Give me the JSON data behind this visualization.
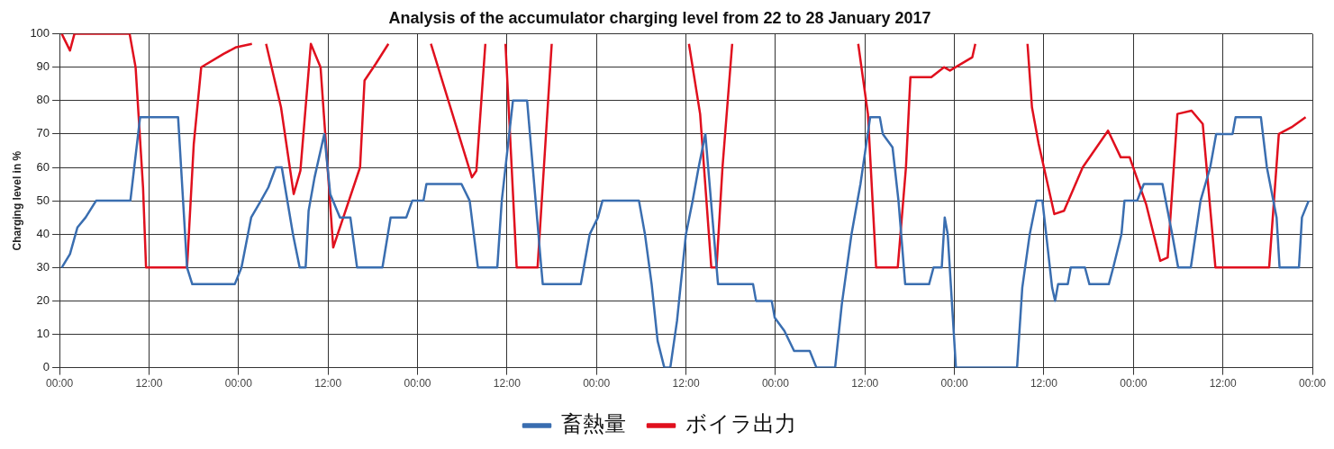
{
  "chart_data": {
    "type": "line",
    "title": "Analysis of the accumulator charging level from 22 to 28 January 2017",
    "ylabel": "Charging level in %",
    "xlim": [
      "2017-01-22T00:00",
      "2017-01-29T00:00"
    ],
    "xticks": [
      {
        "value": "2017-01-22T00:00",
        "label": "00:00"
      },
      {
        "value": "2017-01-22T12:00",
        "label": "12:00"
      },
      {
        "value": "2017-01-23T00:00",
        "label": "00:00"
      },
      {
        "value": "2017-01-23T12:00",
        "label": "12:00"
      },
      {
        "value": "2017-01-24T00:00",
        "label": "00:00"
      },
      {
        "value": "2017-01-24T12:00",
        "label": "12:00"
      },
      {
        "value": "2017-01-25T00:00",
        "label": "00:00"
      },
      {
        "value": "2017-01-25T12:00",
        "label": "12:00"
      },
      {
        "value": "2017-01-26T00:00",
        "label": "00:00"
      },
      {
        "value": "2017-01-26T12:00",
        "label": "12:00"
      },
      {
        "value": "2017-01-27T00:00",
        "label": "00:00"
      },
      {
        "value": "2017-01-27T12:00",
        "label": "12:00"
      },
      {
        "value": "2017-01-28T00:00",
        "label": "00:00"
      },
      {
        "value": "2017-01-28T12:00",
        "label": "12:00"
      },
      {
        "value": "2017-01-29T00:00",
        "label": "00:00"
      }
    ],
    "ylim": [
      0,
      100
    ],
    "yticks": [
      0,
      10,
      20,
      30,
      40,
      50,
      60,
      70,
      80,
      90,
      100
    ],
    "grid": true,
    "legend": "bottom",
    "marker": "none",
    "line_style": "solid",
    "series": [
      {
        "name": "畜熱量",
        "color": "#3a6eb0",
        "x": [
          "2017-01-22T00:18",
          "2017-01-22T01:24",
          "2017-01-22T02:24",
          "2017-01-22T03:30",
          "2017-01-22T04:54",
          "2017-01-22T09:30",
          "2017-01-22T10:48",
          "2017-01-22T15:54",
          "2017-01-22T17:06",
          "2017-01-22T17:48",
          "2017-01-22T23:30",
          "2017-01-23T00:24",
          "2017-01-23T01:42",
          "2017-01-23T03:00",
          "2017-01-23T04:00",
          "2017-01-23T05:00",
          "2017-01-23T05:48",
          "2017-01-23T07:18",
          "2017-01-23T08:12",
          "2017-01-23T09:00",
          "2017-01-23T09:24",
          "2017-01-23T10:12",
          "2017-01-23T11:30",
          "2017-01-23T12:18",
          "2017-01-23T13:36",
          "2017-01-23T15:00",
          "2017-01-23T15:54",
          "2017-01-23T19:18",
          "2017-01-23T20:24",
          "2017-01-23T22:30",
          "2017-01-23T23:18",
          "2017-01-24T00:48",
          "2017-01-24T01:12",
          "2017-01-24T05:54",
          "2017-01-24T07:00",
          "2017-01-24T08:06",
          "2017-01-24T10:42",
          "2017-01-24T11:18",
          "2017-01-24T12:48",
          "2017-01-24T14:42",
          "2017-01-24T16:36",
          "2017-01-24T16:48",
          "2017-01-24T21:54",
          "2017-01-24T22:18",
          "2017-01-24T23:06",
          "2017-01-25T00:12",
          "2017-01-25T00:48",
          "2017-01-25T05:42",
          "2017-01-25T06:30",
          "2017-01-25T07:24",
          "2017-01-25T08:12",
          "2017-01-25T09:06",
          "2017-01-25T09:54",
          "2017-01-25T10:48",
          "2017-01-25T12:00",
          "2017-01-25T12:54",
          "2017-01-25T13:42",
          "2017-01-25T14:36",
          "2017-01-25T16:18",
          "2017-01-25T21:00",
          "2017-01-25T21:24",
          "2017-01-25T23:30",
          "2017-01-25T23:54",
          "2017-01-26T01:12",
          "2017-01-26T02:30",
          "2017-01-26T04:36",
          "2017-01-26T05:30",
          "2017-01-26T08:00",
          "2017-01-26T08:54",
          "2017-01-26T10:12",
          "2017-01-26T11:24",
          "2017-01-26T12:42",
          "2017-01-26T14:00",
          "2017-01-26T14:24",
          "2017-01-26T15:42",
          "2017-01-26T16:30",
          "2017-01-26T17:24",
          "2017-01-26T20:36",
          "2017-01-26T21:12",
          "2017-01-26T22:18",
          "2017-01-26T22:42",
          "2017-01-26T23:06",
          "2017-01-27T00:12",
          "2017-01-27T08:24",
          "2017-01-27T09:06",
          "2017-01-27T10:06",
          "2017-01-27T11:00",
          "2017-01-27T11:48",
          "2017-01-27T13:06",
          "2017-01-27T13:30",
          "2017-01-27T13:54",
          "2017-01-27T15:12",
          "2017-01-27T15:36",
          "2017-01-27T17:30",
          "2017-01-27T18:06",
          "2017-01-27T20:42",
          "2017-01-27T21:18",
          "2017-01-27T22:24",
          "2017-01-27T22:48",
          "2017-01-28T00:30",
          "2017-01-28T01:24",
          "2017-01-28T03:54",
          "2017-01-28T05:12",
          "2017-01-28T06:00",
          "2017-01-28T07:42",
          "2017-01-28T09:00",
          "2017-01-28T10:18",
          "2017-01-28T11:06",
          "2017-01-28T13:18",
          "2017-01-28T13:42",
          "2017-01-28T17:06",
          "2017-01-28T17:54",
          "2017-01-28T19:12",
          "2017-01-28T19:36",
          "2017-01-28T22:12",
          "2017-01-28T22:36",
          "2017-01-28T23:30"
        ],
        "values": [
          30,
          34,
          42,
          45,
          50,
          50,
          75,
          75,
          30,
          25,
          25,
          30,
          45,
          50,
          54,
          60,
          60,
          40,
          30,
          30,
          47,
          57,
          70,
          52,
          45,
          45,
          30,
          30,
          45,
          45,
          50,
          50,
          55,
          55,
          50,
          30,
          30,
          50,
          80,
          80,
          30,
          25,
          25,
          30,
          40,
          45,
          50,
          50,
          40,
          25,
          8,
          0,
          0,
          14,
          40,
          50,
          60,
          70,
          25,
          25,
          20,
          20,
          15,
          11,
          5,
          5,
          0,
          0,
          19,
          40,
          55,
          75,
          75,
          70,
          66,
          50,
          25,
          25,
          30,
          30,
          45,
          40,
          0,
          0,
          24,
          40,
          50,
          50,
          24,
          20,
          25,
          25,
          30,
          30,
          25,
          25,
          30,
          40,
          50,
          50,
          55,
          55,
          40,
          30,
          30,
          50,
          60,
          70,
          70,
          75,
          75,
          60,
          45,
          30,
          30,
          45,
          50
        ]
      },
      {
        "name": "ボイラ出力",
        "color": "#e0101e",
        "x": [
          "2017-01-22T00:18",
          "2017-01-22T01:24",
          "2017-01-22T02:00",
          "2017-01-22T09:24",
          "2017-01-22T10:12",
          "2017-01-22T11:12",
          "2017-01-22T11:36",
          "2017-01-22T17:06",
          "2017-01-22T18:00",
          "2017-01-22T19:00",
          "2017-01-22T22:00",
          "2017-01-22T23:42",
          "2017-01-23T01:48",
          "2017-01-23T02:42",
          "2017-01-23T03:42",
          "2017-01-23T05:42",
          "2017-01-23T07:24",
          "2017-01-23T08:18",
          "2017-01-23T09:42",
          "2017-01-23T11:00",
          "2017-01-23T12:42",
          "2017-01-23T16:18",
          "2017-01-23T16:54",
          "2017-01-23T18:24",
          "2017-01-23T20:06",
          "2017-01-23T23:00",
          "2017-01-24T01:48",
          "2017-01-24T07:18",
          "2017-01-24T07:54",
          "2017-01-24T09:06",
          "2017-01-24T10:30",
          "2017-01-24T11:48",
          "2017-01-24T13:18",
          "2017-01-24T16:06",
          "2017-01-24T18:00",
          "2017-01-25T03:00",
          "2017-01-25T12:24",
          "2017-01-25T13:54",
          "2017-01-25T15:24",
          "2017-01-25T16:06",
          "2017-01-25T16:54",
          "2017-01-25T18:12",
          "2017-01-26T02:00",
          "2017-01-26T11:06",
          "2017-01-26T12:24",
          "2017-01-26T13:30",
          "2017-01-26T16:24",
          "2017-01-26T17:30",
          "2017-01-26T18:06",
          "2017-01-26T20:54",
          "2017-01-26T22:36",
          "2017-01-26T23:24",
          "2017-01-27T02:24",
          "2017-01-27T02:48",
          "2017-01-27T06:00",
          "2017-01-27T09:48",
          "2017-01-27T10:24",
          "2017-01-27T11:18",
          "2017-01-27T13:24",
          "2017-01-27T14:42",
          "2017-01-27T17:12",
          "2017-01-27T20:36",
          "2017-01-27T22:18",
          "2017-01-27T23:30",
          "2017-01-28T01:42",
          "2017-01-28T03:36",
          "2017-01-28T04:36",
          "2017-01-28T05:54",
          "2017-01-28T07:48",
          "2017-01-28T09:18",
          "2017-01-28T11:00",
          "2017-01-28T18:12",
          "2017-01-28T19:30",
          "2017-01-28T21:12",
          "2017-01-28T23:06"
        ],
        "values": [
          100,
          95,
          100,
          100,
          90,
          54,
          30,
          30,
          67,
          90,
          94,
          96,
          97,
          null,
          97,
          78,
          52,
          59,
          97,
          90,
          36,
          60,
          86,
          91,
          97,
          null,
          97,
          57,
          59,
          97,
          null,
          97,
          30,
          30,
          97,
          null,
          97,
          76,
          30,
          30,
          60,
          97,
          null,
          97,
          76,
          30,
          30,
          60,
          87,
          87,
          90,
          89,
          93,
          97,
          null,
          97,
          78,
          67,
          46,
          47,
          60,
          71,
          63,
          63,
          49,
          32,
          33,
          76,
          77,
          73,
          30,
          30,
          70,
          72,
          75
        ]
      }
    ]
  }
}
